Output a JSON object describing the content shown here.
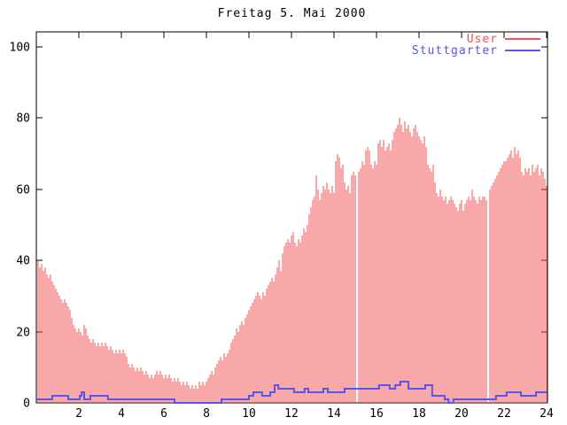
{
  "title": "Freitag 5. Mai 2000",
  "colors": {
    "background": "#ffffff",
    "axis": "#000000",
    "user": "#f25252",
    "stuttgarter": "#5a55e8"
  },
  "chart_data": {
    "type": "bar",
    "title": "Freitag 5. Mai 2000",
    "xlabel": "",
    "ylabel": "",
    "xlim": [
      0,
      24
    ],
    "ylim": [
      0,
      104
    ],
    "x_ticks": [
      2,
      4,
      6,
      8,
      10,
      12,
      14,
      16,
      18,
      20,
      22,
      24
    ],
    "y_ticks": [
      0,
      20,
      40,
      60,
      80,
      100
    ],
    "grid": false,
    "legend_position": "top-right-inside",
    "sample_interval_minutes": 5,
    "series": [
      {
        "name": "User",
        "style": "impulses",
        "color": "#f25252",
        "values": [
          40,
          38,
          39,
          37,
          38,
          36,
          35,
          36,
          34,
          33,
          32,
          31,
          30,
          29,
          28,
          29,
          28,
          27,
          26,
          24,
          22,
          21,
          20,
          21,
          20,
          19,
          22,
          21,
          19,
          18,
          17,
          18,
          17,
          16,
          17,
          16,
          17,
          16,
          17,
          16,
          15,
          16,
          15,
          14,
          15,
          14,
          15,
          14,
          15,
          14,
          13,
          11,
          10,
          11,
          10,
          9,
          10,
          9,
          10,
          9,
          8,
          9,
          8,
          7,
          8,
          7,
          8,
          9,
          8,
          9,
          8,
          7,
          8,
          7,
          8,
          7,
          6,
          7,
          6,
          7,
          6,
          5,
          6,
          5,
          6,
          5,
          4,
          5,
          4,
          5,
          4,
          6,
          5,
          6,
          5,
          6,
          7,
          8,
          9,
          8,
          10,
          11,
          12,
          13,
          12,
          14,
          13,
          14,
          15,
          17,
          18,
          19,
          21,
          20,
          22,
          23,
          22,
          24,
          25,
          26,
          27,
          28,
          29,
          30,
          31,
          30,
          29,
          31,
          30,
          32,
          33,
          34,
          35,
          34,
          36,
          38,
          40,
          37,
          42,
          44,
          45,
          46,
          45,
          47,
          48,
          45,
          44,
          46,
          45,
          47,
          49,
          48,
          50,
          53,
          55,
          57,
          58,
          64,
          60,
          57,
          59,
          61,
          60,
          62,
          60,
          59,
          61,
          59,
          68,
          70,
          69,
          66,
          67,
          62,
          60,
          61,
          59,
          64,
          65,
          64,
          null,
          65,
          66,
          68,
          67,
          71,
          72,
          71,
          67,
          66,
          68,
          67,
          73,
          74,
          72,
          74,
          71,
          72,
          73,
          71,
          74,
          76,
          77,
          78,
          80,
          78,
          76,
          79,
          77,
          78,
          76,
          75,
          77,
          78,
          76,
          75,
          74,
          73,
          75,
          72,
          67,
          66,
          65,
          67,
          62,
          59,
          58,
          60,
          58,
          57,
          58,
          56,
          57,
          58,
          57,
          56,
          55,
          54,
          56,
          57,
          54,
          56,
          57,
          58,
          57,
          60,
          58,
          57,
          56,
          58,
          57,
          58,
          58,
          57,
          null,
          60,
          61,
          62,
          63,
          64,
          65,
          66,
          67,
          68,
          68,
          69,
          70,
          71,
          69,
          72,
          70,
          71,
          69,
          65,
          64,
          66,
          65,
          66,
          64,
          67,
          65,
          66,
          67,
          64,
          66,
          65,
          63,
          61
        ]
      },
      {
        "name": "Stuttgarter",
        "style": "steps",
        "color": "#5a55e8",
        "segments_hour_start_end_value": [
          [
            0,
            0.75,
            1
          ],
          [
            0.75,
            1.5,
            2
          ],
          [
            1.5,
            2.05,
            1
          ],
          [
            2.05,
            2.15,
            2
          ],
          [
            2.15,
            2.25,
            3
          ],
          [
            2.25,
            2.55,
            1
          ],
          [
            2.55,
            3.35,
            2
          ],
          [
            3.35,
            6.5,
            1
          ],
          [
            6.5,
            8.7,
            0
          ],
          [
            8.7,
            10,
            1
          ],
          [
            10,
            10.2,
            2
          ],
          [
            10.2,
            10.6,
            3
          ],
          [
            10.6,
            11,
            2
          ],
          [
            11,
            11.2,
            3
          ],
          [
            11.2,
            11.4,
            5
          ],
          [
            11.4,
            12.1,
            4
          ],
          [
            12.1,
            12.6,
            3
          ],
          [
            12.6,
            12.8,
            4
          ],
          [
            12.8,
            13.5,
            3
          ],
          [
            13.5,
            13.7,
            4
          ],
          [
            13.7,
            14.5,
            3
          ],
          [
            14.5,
            16.1,
            4
          ],
          [
            16.1,
            16.6,
            5
          ],
          [
            16.6,
            16.9,
            4
          ],
          [
            16.9,
            17.1,
            5
          ],
          [
            17.1,
            17.5,
            6
          ],
          [
            17.5,
            18.3,
            4
          ],
          [
            18.3,
            18.6,
            5
          ],
          [
            18.6,
            19.2,
            2
          ],
          [
            19.2,
            19.4,
            1
          ],
          [
            19.4,
            19.6,
            0
          ],
          [
            19.6,
            21.6,
            1
          ],
          [
            21.6,
            22.1,
            2
          ],
          [
            22.1,
            22.8,
            3
          ],
          [
            22.8,
            23.5,
            2
          ],
          [
            23.5,
            24,
            3
          ]
        ]
      }
    ]
  },
  "legend": {
    "items": [
      {
        "label": "User"
      },
      {
        "label": "Stuttgarter"
      }
    ]
  }
}
